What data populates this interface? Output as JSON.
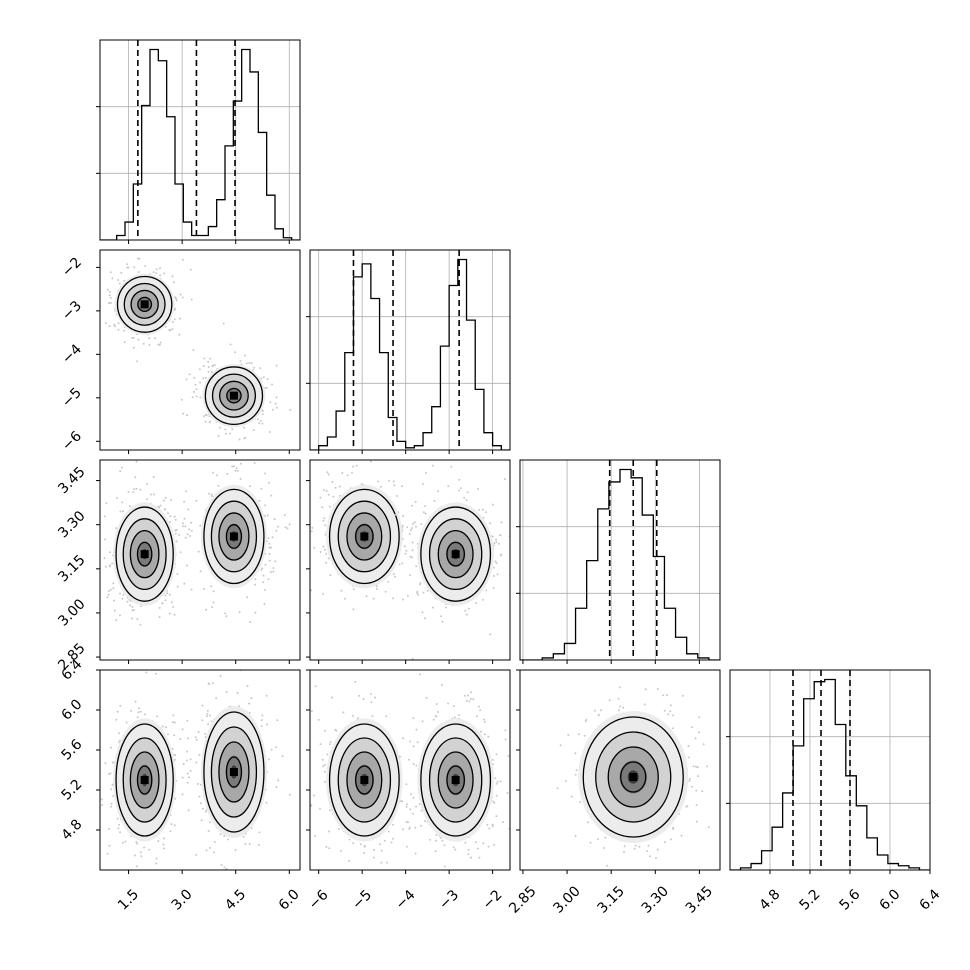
{
  "chart_data": {
    "type": "corner",
    "title": "",
    "axes": [
      {
        "index": 0,
        "label": "",
        "range": [
          0.7,
          6.3
        ],
        "ticks": [
          1.5,
          3.0,
          4.5,
          6.0
        ],
        "tick_labels": [
          "1.5",
          "3.0",
          "4.5",
          "6.0"
        ],
        "quantiles": [
          1.76,
          3.4,
          4.48
        ]
      },
      {
        "index": 1,
        "label": "",
        "range": [
          -6.2,
          -1.6
        ],
        "ticks": [
          -6,
          -5,
          -4,
          -3,
          -2
        ],
        "tick_labels": [
          "−6",
          "−5",
          "−4",
          "−3",
          "−2"
        ],
        "quantiles": [
          -5.2,
          -4.29,
          -2.77
        ]
      },
      {
        "index": 2,
        "label": "",
        "range": [
          2.84,
          3.52
        ],
        "ticks": [
          2.85,
          3.0,
          3.15,
          3.3,
          3.45
        ],
        "tick_labels": [
          "2.85",
          "3.00",
          "3.15",
          "3.30",
          "3.45"
        ],
        "quantiles": [
          3.145,
          3.225,
          3.305
        ]
      },
      {
        "index": 3,
        "label": "",
        "range": [
          4.4,
          6.4
        ],
        "ticks": [
          4.8,
          5.2,
          5.6,
          6.0,
          6.4
        ],
        "tick_labels": [
          "4.8",
          "5.2",
          "5.6",
          "6.0",
          "6.4"
        ],
        "quantiles": [
          5.03,
          5.31,
          5.6
        ]
      }
    ],
    "histograms": [
      {
        "axis": 0,
        "counts": [
          0,
          0,
          2,
          8,
          25,
          60,
          85,
          80,
          55,
          25,
          8,
          2,
          2,
          6,
          18,
          42,
          62,
          85,
          75,
          48,
          20,
          5,
          1,
          0
        ]
      },
      {
        "axis": 1,
        "counts": [
          0,
          2,
          6,
          18,
          45,
          80,
          86,
          70,
          45,
          15,
          4,
          1,
          2,
          8,
          20,
          48,
          76,
          88,
          60,
          28,
          8,
          2,
          0
        ]
      },
      {
        "axis": 2,
        "counts": [
          0,
          0,
          1,
          3,
          8,
          25,
          48,
          73,
          86,
          92,
          88,
          70,
          50,
          25,
          11,
          3,
          1,
          0
        ]
      },
      {
        "axis": 3,
        "counts": [
          0,
          1,
          3,
          9,
          20,
          36,
          58,
          80,
          88,
          89,
          68,
          44,
          30,
          15,
          7,
          3,
          2,
          1,
          0
        ]
      }
    ],
    "modes_2d": [
      {
        "x_axis": 0,
        "y_axis": 1,
        "centers": [
          [
            1.95,
            -2.85
          ],
          [
            4.45,
            -4.95
          ]
        ],
        "sd": [
          [
            0.38,
            0.32
          ],
          [
            0.4,
            0.33
          ]
        ]
      },
      {
        "x_axis": 0,
        "y_axis": 2,
        "centers": [
          [
            1.95,
            3.2
          ],
          [
            4.45,
            3.26
          ]
        ],
        "sd": [
          [
            0.4,
            0.08
          ],
          [
            0.42,
            0.08
          ]
        ]
      },
      {
        "x_axis": 1,
        "y_axis": 2,
        "centers": [
          [
            -4.95,
            3.26
          ],
          [
            -2.85,
            3.2
          ]
        ],
        "sd": [
          [
            0.4,
            0.08
          ],
          [
            0.4,
            0.08
          ]
        ]
      },
      {
        "x_axis": 0,
        "y_axis": 3,
        "centers": [
          [
            1.95,
            5.3
          ],
          [
            4.45,
            5.38
          ]
        ],
        "sd": [
          [
            0.4,
            0.28
          ],
          [
            0.42,
            0.3
          ]
        ]
      },
      {
        "x_axis": 1,
        "y_axis": 3,
        "centers": [
          [
            -4.95,
            5.3
          ],
          [
            -2.85,
            5.3
          ]
        ],
        "sd": [
          [
            0.4,
            0.28
          ],
          [
            0.4,
            0.28
          ]
        ]
      },
      {
        "x_axis": 2,
        "y_axis": 3,
        "centers": [
          [
            3.225,
            5.33
          ]
        ],
        "sd": [
          [
            0.085,
            0.3
          ]
        ]
      }
    ],
    "contour_levels_sigma": [
      0.5,
      1.0,
      1.5,
      2.0
    ],
    "grid": true
  }
}
